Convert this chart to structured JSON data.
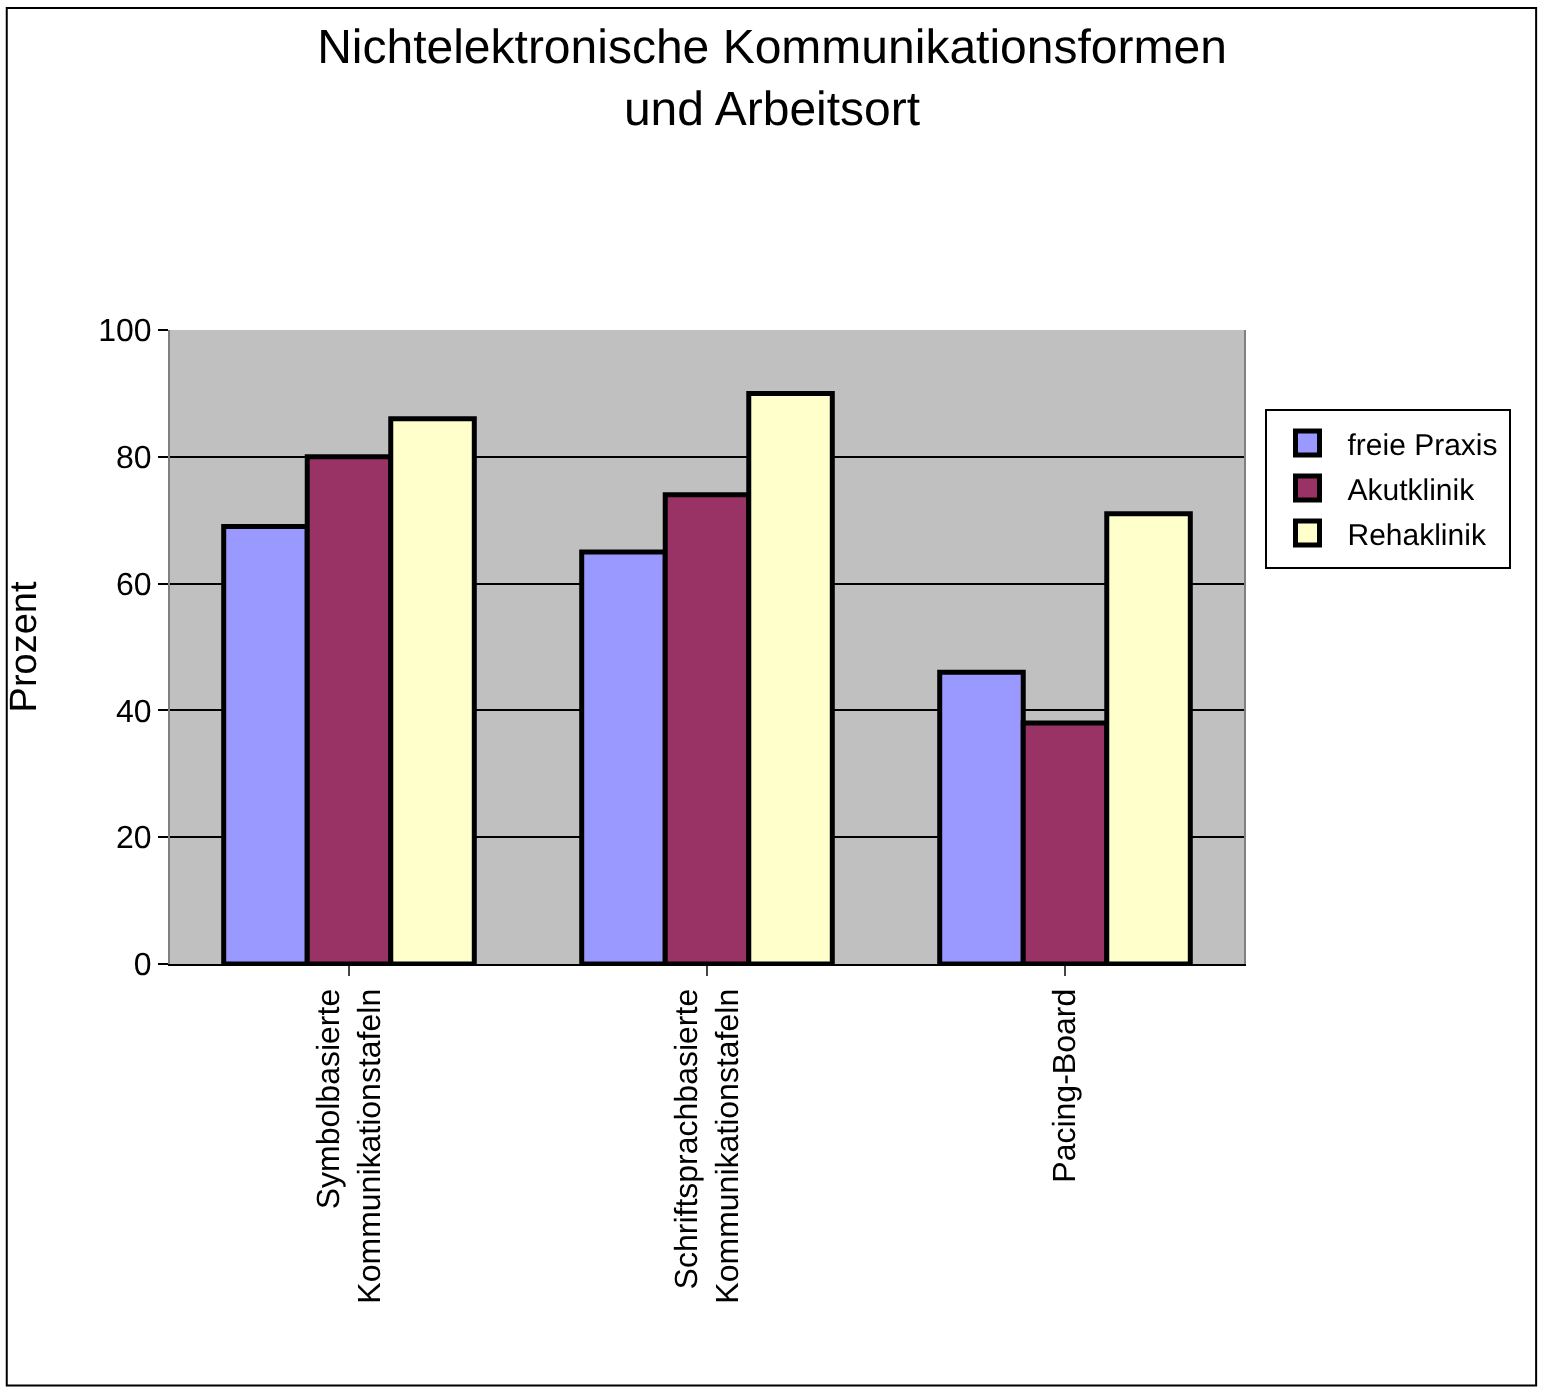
{
  "chart_data": {
    "type": "bar",
    "title": "Nichtelektronische Kommunikationsformen\nund Arbeitsort",
    "ylabel": "Prozent",
    "categories": [
      "Symbolbasierte\nKommunikationstafeln",
      "Schriftsprachbasierte\nKommunikationstafeln",
      "Pacing-Board"
    ],
    "series": [
      {
        "name": "freie Praxis",
        "color": "#9999ff",
        "values": [
          69,
          65,
          46
        ]
      },
      {
        "name": "Akutklinik",
        "color": "#993366",
        "values": [
          80,
          74,
          38
        ]
      },
      {
        "name": "Rehaklinik",
        "color": "#ffffcc",
        "values": [
          86,
          90,
          71
        ]
      }
    ],
    "ylim": [
      0,
      100
    ],
    "yticks": [
      0,
      20,
      40,
      60,
      80,
      100
    ],
    "grid": "y",
    "legend": "right"
  }
}
